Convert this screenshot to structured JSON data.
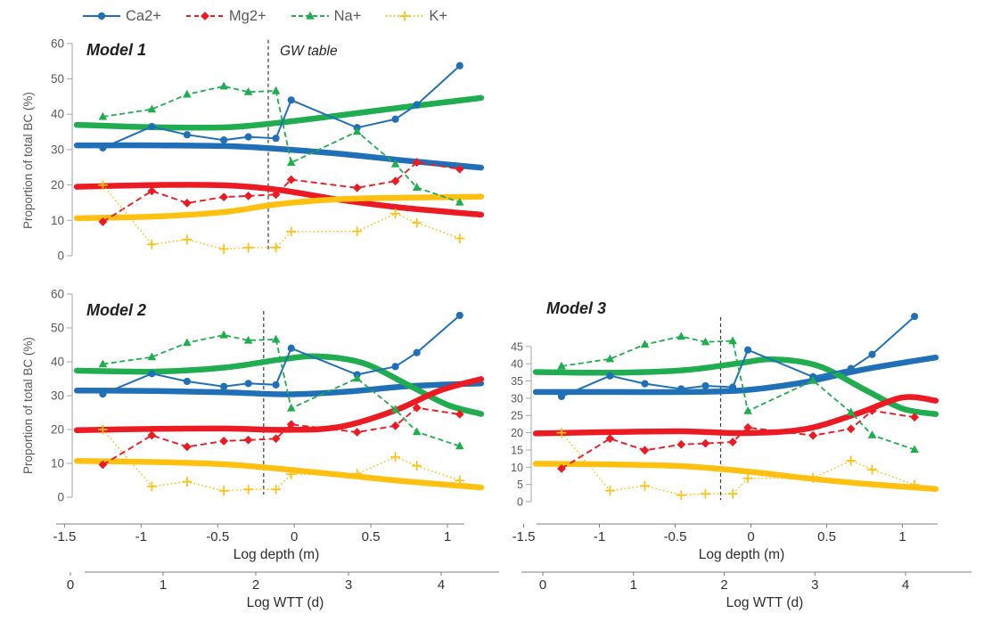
{
  "legend": {
    "items": [
      {
        "label": "Ca2+",
        "key": "ca",
        "color": "#2070B8",
        "marker": "circle",
        "dash": ""
      },
      {
        "label": "Mg2+",
        "key": "mg",
        "color": "#EC1B23",
        "marker": "diamond",
        "dash": "5 4"
      },
      {
        "label": "Na+",
        "key": "na",
        "color": "#1FAD50",
        "marker": "triangle",
        "dash": "5 3"
      },
      {
        "label": "K+",
        "key": "k",
        "color": "#FFC010",
        "marker": "plus",
        "dash": "1.6 2.8"
      }
    ]
  },
  "depth_axis": {
    "label": "Log depth (m)",
    "ticks": [
      "-1.5",
      "-1",
      "-0.5",
      "0",
      "0.5",
      "1"
    ]
  },
  "wtt_axis": {
    "label": "Log WTT (d)",
    "ticks": [
      "0",
      "1",
      "2",
      "3",
      "4"
    ]
  },
  "colors": {
    "blue": "#2070B8",
    "red": "#EC1B23",
    "green": "#1FAD50",
    "yellow": "#FFC010",
    "axis_gray": "#A6A6A6",
    "text_gray": "#595959",
    "gw_line": "#3A3A3A"
  },
  "chart_data": [
    {
      "id": "model1",
      "type": "line",
      "title": "Model 1",
      "annotation": "GW table",
      "ylabel": "Proportion of total BC (%)",
      "yticks": [
        0,
        10,
        20,
        30,
        40,
        50,
        60
      ],
      "ylim": [
        0,
        61.2
      ],
      "xlim": [
        -1.45,
        1.25
      ],
      "gw_line": {
        "x": -0.17,
        "y_top": 61,
        "y_bottom": 1
      },
      "x": [
        -1.25,
        -0.93,
        -0.7,
        -0.46,
        -0.3,
        -0.12,
        -0.02,
        0.41,
        0.66,
        0.8,
        1.08
      ],
      "series": [
        {
          "name": "Ca2+",
          "key": "ca",
          "color": "#2070B8",
          "marker": "circle",
          "dash": "",
          "width": 2,
          "values": [
            30.5,
            36.5,
            34.2,
            32.7,
            33.6,
            33.2,
            44,
            36.2,
            38.6,
            42.7,
            53.7
          ]
        },
        {
          "name": "Na+",
          "key": "na",
          "color": "#1FAD50",
          "marker": "triangle",
          "dash": "6 3.5",
          "width": 1.8,
          "values": [
            39.3,
            41.4,
            45.6,
            47.9,
            46.3,
            46.6,
            26.3,
            35.1,
            25.9,
            19.3,
            15.1
          ]
        },
        {
          "name": "Mg2+",
          "key": "mg",
          "color": "#EC1B23",
          "marker": "diamond",
          "dash": "7 4",
          "width": 1.9,
          "values": [
            9.6,
            18.3,
            14.9,
            16.6,
            16.9,
            17.3,
            21.5,
            19.2,
            21.1,
            26.4,
            24.5
          ]
        },
        {
          "name": "K+",
          "key": "k",
          "color": "#FFC010",
          "marker": "plus",
          "dash": "1.6 2.8",
          "width": 1.5,
          "values": [
            20,
            3.2,
            4.6,
            1.9,
            2.3,
            2.3,
            6.8,
            6.9,
            11.9,
            9.3,
            4.9
          ]
        }
      ],
      "trend": [
        {
          "key": "ca",
          "color": "#2070B8",
          "points": [
            [
              -1.42,
              31.2
            ],
            [
              -0.9,
              31.2
            ],
            [
              -0.45,
              31
            ],
            [
              -0.1,
              30.2
            ],
            [
              0.3,
              28.8
            ],
            [
              0.7,
              27
            ],
            [
              1.22,
              24.9
            ]
          ]
        },
        {
          "key": "na",
          "color": "#1FAD50",
          "points": [
            [
              -1.42,
              37
            ],
            [
              -0.9,
              36.3
            ],
            [
              -0.45,
              36.3
            ],
            [
              -0.1,
              37.6
            ],
            [
              0.3,
              39.7
            ],
            [
              0.7,
              41.9
            ],
            [
              1.22,
              44.6
            ]
          ]
        },
        {
          "key": "mg",
          "color": "#EC1B23",
          "points": [
            [
              -1.42,
              19.5
            ],
            [
              -0.9,
              20
            ],
            [
              -0.45,
              19.9
            ],
            [
              -0.1,
              18.6
            ],
            [
              0.3,
              15.8
            ],
            [
              0.7,
              13.6
            ],
            [
              1.22,
              11.6
            ]
          ]
        },
        {
          "key": "k",
          "color": "#FFC010",
          "points": [
            [
              -1.42,
              10.6
            ],
            [
              -0.9,
              11.1
            ],
            [
              -0.45,
              12.4
            ],
            [
              -0.1,
              14.6
            ],
            [
              0.3,
              16
            ],
            [
              0.7,
              16.4
            ],
            [
              1.22,
              16.7
            ]
          ]
        }
      ]
    },
    {
      "id": "model2",
      "type": "line",
      "title": "Model 2",
      "ylabel": "Proportion of total BC (%)",
      "yticks": [
        0,
        10,
        20,
        30,
        40,
        50,
        60
      ],
      "ylim": [
        0,
        62.1
      ],
      "xlim": [
        -1.45,
        1.25
      ],
      "gw_line": {
        "x": -0.2,
        "y_top": 55,
        "y_bottom": 0.8
      },
      "x": [
        -1.25,
        -0.93,
        -0.7,
        -0.46,
        -0.3,
        -0.12,
        -0.02,
        0.41,
        0.66,
        0.8,
        1.08
      ],
      "series": [
        {
          "name": "Ca2+",
          "key": "ca",
          "color": "#2070B8",
          "marker": "circle",
          "dash": "",
          "width": 2,
          "values": [
            30.5,
            36.5,
            34.2,
            32.7,
            33.6,
            33.2,
            44,
            36.2,
            38.6,
            42.7,
            53.7
          ]
        },
        {
          "name": "Na+",
          "key": "na",
          "color": "#1FAD50",
          "marker": "triangle",
          "dash": "6 3.5",
          "width": 1.8,
          "values": [
            39.3,
            41.4,
            45.6,
            47.9,
            46.3,
            46.6,
            26.3,
            35.1,
            25.9,
            19.3,
            15.1
          ]
        },
        {
          "name": "Mg2+",
          "key": "mg",
          "color": "#EC1B23",
          "marker": "diamond",
          "dash": "7 4",
          "width": 1.9,
          "values": [
            9.6,
            18.3,
            14.9,
            16.6,
            16.9,
            17.3,
            21.5,
            19.2,
            21.1,
            26.4,
            24.5
          ]
        },
        {
          "name": "K+",
          "key": "k",
          "color": "#FFC010",
          "marker": "plus",
          "dash": "1.6 2.8",
          "width": 1.5,
          "values": [
            20,
            3.2,
            4.6,
            1.9,
            2.3,
            2.3,
            6.8,
            6.9,
            11.9,
            9.3,
            4.9
          ]
        }
      ],
      "trend": [
        {
          "key": "ca",
          "color": "#2070B8",
          "points": [
            [
              -1.42,
              31.5
            ],
            [
              -0.9,
              31.4
            ],
            [
              -0.45,
              31
            ],
            [
              -0.05,
              30.4
            ],
            [
              0.35,
              31.2
            ],
            [
              0.75,
              32.8
            ],
            [
              1.22,
              33.6
            ]
          ]
        },
        {
          "key": "na",
          "color": "#1FAD50",
          "points": [
            [
              -1.42,
              37.4
            ],
            [
              -0.9,
              37.1
            ],
            [
              -0.45,
              38.3
            ],
            [
              -0.1,
              40.6
            ],
            [
              0.15,
              41.6
            ],
            [
              0.45,
              39.6
            ],
            [
              0.75,
              33
            ],
            [
              1,
              27.3
            ],
            [
              1.22,
              24.6
            ]
          ]
        },
        {
          "key": "mg",
          "color": "#EC1B23",
          "points": [
            [
              -1.42,
              19.8
            ],
            [
              -0.9,
              20.2
            ],
            [
              -0.45,
              20.3
            ],
            [
              -0.05,
              19.9
            ],
            [
              0.3,
              20.8
            ],
            [
              0.65,
              25.5
            ],
            [
              0.95,
              31.5
            ],
            [
              1.22,
              34.9
            ]
          ]
        },
        {
          "key": "k",
          "color": "#FFC010",
          "points": [
            [
              -1.42,
              10.7
            ],
            [
              -0.9,
              10.4
            ],
            [
              -0.45,
              9.7
            ],
            [
              -0.05,
              8.2
            ],
            [
              0.35,
              6.4
            ],
            [
              0.75,
              4.6
            ],
            [
              1.22,
              2.9
            ]
          ]
        }
      ]
    },
    {
      "id": "model3",
      "type": "line",
      "title": "Model 3",
      "yticks": [
        0,
        5,
        10,
        15,
        20,
        25,
        30,
        35,
        40,
        45
      ],
      "ylim": [
        0,
        60.2
      ],
      "xlim": [
        -1.45,
        1.25
      ],
      "gw_line": {
        "x": -0.2,
        "y_top": 53.5,
        "y_bottom": 0.5
      },
      "x": [
        -1.25,
        -0.93,
        -0.7,
        -0.46,
        -0.3,
        -0.12,
        -0.02,
        0.41,
        0.66,
        0.8,
        1.08
      ],
      "series": [
        {
          "name": "Ca2+",
          "key": "ca",
          "color": "#2070B8",
          "marker": "circle",
          "dash": "",
          "width": 2,
          "values": [
            30.5,
            36.5,
            34.2,
            32.7,
            33.6,
            33.2,
            44,
            36.2,
            38.6,
            42.7,
            53.7
          ]
        },
        {
          "name": "Na+",
          "key": "na",
          "color": "#1FAD50",
          "marker": "triangle",
          "dash": "6 3.5",
          "width": 1.8,
          "values": [
            39.3,
            41.4,
            45.6,
            47.9,
            46.3,
            46.6,
            26.3,
            35.1,
            25.9,
            19.3,
            15.1
          ]
        },
        {
          "name": "Mg2+",
          "key": "mg",
          "color": "#EC1B23",
          "marker": "diamond",
          "dash": "7 4",
          "width": 1.9,
          "values": [
            9.6,
            18.3,
            14.9,
            16.6,
            16.9,
            17.3,
            21.5,
            19.2,
            21.1,
            26.4,
            24.5
          ]
        },
        {
          "name": "K+",
          "key": "k",
          "color": "#FFC010",
          "marker": "plus",
          "dash": "1.6 2.8",
          "width": 1.5,
          "values": [
            20,
            3.2,
            4.6,
            1.9,
            2.3,
            2.3,
            6.8,
            6.9,
            11.9,
            9.3,
            4.9
          ]
        }
      ],
      "trend": [
        {
          "key": "ca",
          "color": "#2070B8",
          "points": [
            [
              -1.42,
              31.8
            ],
            [
              -0.9,
              31.8
            ],
            [
              -0.45,
              31.8
            ],
            [
              -0.05,
              32.3
            ],
            [
              0.35,
              34.6
            ],
            [
              0.75,
              38.4
            ],
            [
              1.22,
              41.8
            ]
          ]
        },
        {
          "key": "na",
          "color": "#1FAD50",
          "points": [
            [
              -1.42,
              37.6
            ],
            [
              -0.9,
              37.4
            ],
            [
              -0.45,
              38.1
            ],
            [
              -0.1,
              40
            ],
            [
              0.15,
              41.3
            ],
            [
              0.45,
              39.3
            ],
            [
              0.75,
              32.5
            ],
            [
              1,
              27
            ],
            [
              1.22,
              25.4
            ]
          ]
        },
        {
          "key": "mg",
          "color": "#EC1B23",
          "points": [
            [
              -1.42,
              19.8
            ],
            [
              -0.9,
              20.2
            ],
            [
              -0.45,
              20.4
            ],
            [
              -0.05,
              19.9
            ],
            [
              0.35,
              21
            ],
            [
              0.7,
              25.5
            ],
            [
              1,
              30.2
            ],
            [
              1.22,
              29.3
            ]
          ]
        },
        {
          "key": "k",
          "color": "#FFC010",
          "points": [
            [
              -1.42,
              11
            ],
            [
              -0.9,
              10.8
            ],
            [
              -0.45,
              10.3
            ],
            [
              -0.05,
              8.9
            ],
            [
              0.35,
              6.9
            ],
            [
              0.75,
              5.2
            ],
            [
              1.22,
              3.7
            ]
          ]
        }
      ]
    }
  ]
}
